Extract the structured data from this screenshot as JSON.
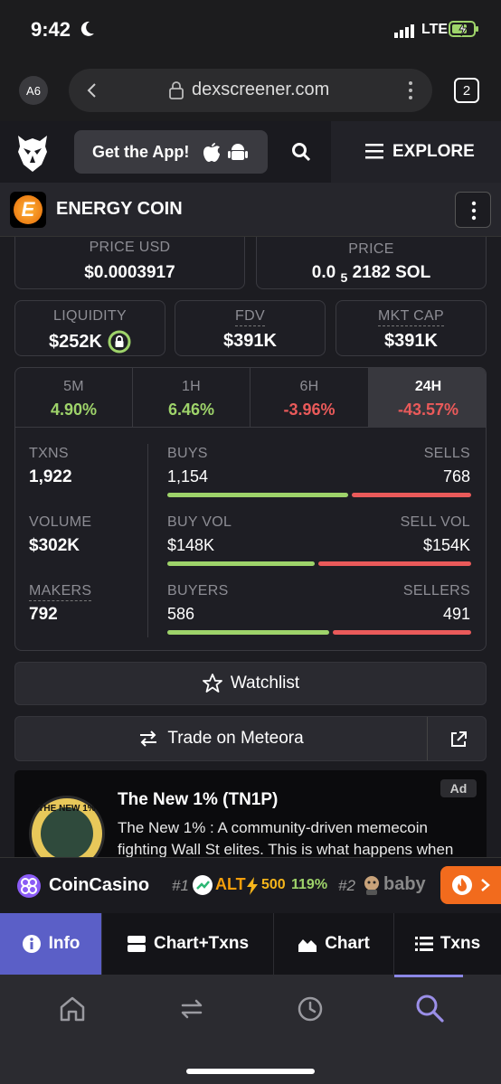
{
  "status_bar": {
    "time": "9:42",
    "network": "LTE"
  },
  "browser": {
    "profile": "A6",
    "url": "dexscreener.com",
    "tab_count": "2"
  },
  "site_header": {
    "get_app": "Get the App!",
    "explore": "EXPLORE"
  },
  "token": {
    "name": "ENERGY COIN"
  },
  "prices": {
    "price_usd_label": "PRICE USD",
    "price_usd": "$0.0003917",
    "price_label": "PRICE",
    "price_prefix": "0.0",
    "price_sub": "5",
    "price_rest": "2182 SOL"
  },
  "metrics": {
    "liquidity_label": "LIQUIDITY",
    "liquidity": "$252K",
    "fdv_label": "FDV",
    "fdv": "$391K",
    "mktcap_label": "MKT CAP",
    "mktcap": "$391K"
  },
  "timeframes": [
    {
      "label": "5M",
      "value": "4.90%"
    },
    {
      "label": "1H",
      "value": "6.46%"
    },
    {
      "label": "6H",
      "value": "-3.96%"
    },
    {
      "label": "24H",
      "value": "-43.57%"
    }
  ],
  "stats": {
    "txns_label": "TXNS",
    "txns": "1,922",
    "volume_label": "VOLUME",
    "volume": "$302K",
    "makers_label": "MAKERS",
    "makers": "792",
    "buys_label": "BUYS",
    "buys": "1,154",
    "sells_label": "SELLS",
    "sells": "768",
    "buys_share": 0.6,
    "buyvol_label": "BUY VOL",
    "buyvol": "$148K",
    "sellvol_label": "SELL VOL",
    "sellvol": "$154K",
    "buyvol_share": 0.49,
    "buyers_label": "BUYERS",
    "buyers": "586",
    "sellers_label": "SELLERS",
    "sellers": "491",
    "buyers_share": 0.54
  },
  "actions": {
    "watchlist": "Watchlist",
    "trade": "Trade on Meteora"
  },
  "ad": {
    "badge": "Ad",
    "title": "The New 1% (TN1P)",
    "text": "The New 1% : A community-driven memecoin fighting Wall St elites. This is what happens when",
    "logo_text": "THE NEW 1%"
  },
  "ticker": {
    "brand": "CoinCasino",
    "rank1": "#1",
    "coin1": "ALT",
    "num1": "500",
    "pct1": "119%",
    "rank2": "#2",
    "coin2": "baby"
  },
  "tabs": {
    "info": "Info",
    "chart_txns": "Chart+Txns",
    "chart": "Chart",
    "txns": "Txns"
  },
  "colors": {
    "accent": "#5b5fc7",
    "green": "#9ed36a",
    "red": "#ea5a5a",
    "orange": "#f26b1d"
  }
}
